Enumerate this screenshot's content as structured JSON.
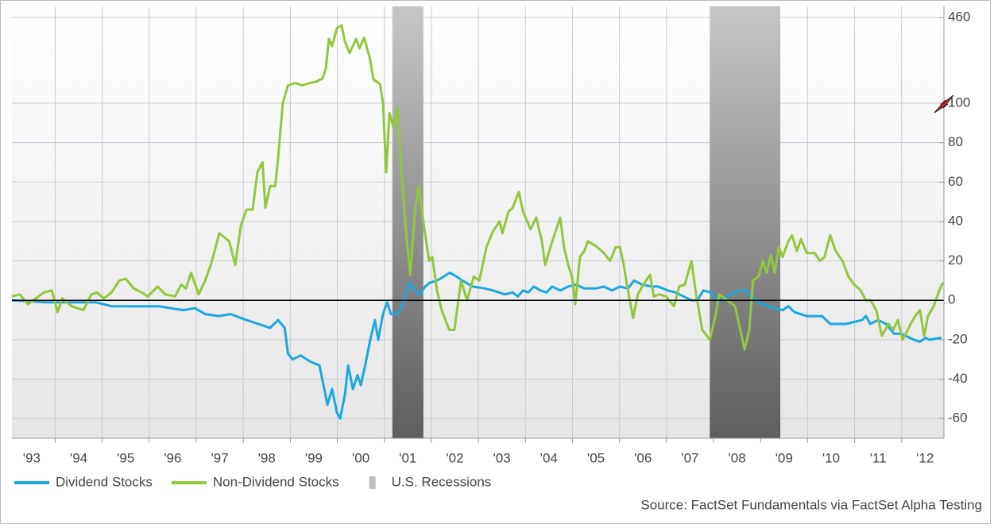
{
  "chart_data": {
    "type": "line",
    "source": "Source: FactSet Fundamentals via FactSet Alpha Testing",
    "xlim": [
      1993.08,
      2012.9
    ],
    "xticks": [
      {
        "value": 1993,
        "label": "'93"
      },
      {
        "value": 1994,
        "label": "'94"
      },
      {
        "value": 1995,
        "label": "'95"
      },
      {
        "value": 1996,
        "label": "'96"
      },
      {
        "value": 1997,
        "label": "'97"
      },
      {
        "value": 1998,
        "label": "'98"
      },
      {
        "value": 1999,
        "label": "'99"
      },
      {
        "value": 2000,
        "label": "'00"
      },
      {
        "value": 2001,
        "label": "'01"
      },
      {
        "value": 2002,
        "label": "'02"
      },
      {
        "value": 2003,
        "label": "'03"
      },
      {
        "value": 2004,
        "label": "'04"
      },
      {
        "value": 2005,
        "label": "'05"
      },
      {
        "value": 2006,
        "label": "'06"
      },
      {
        "value": 2007,
        "label": "'07"
      },
      {
        "value": 2008,
        "label": "'08"
      },
      {
        "value": 2009,
        "label": "'09"
      },
      {
        "value": 2010,
        "label": "'10"
      },
      {
        "value": 2011,
        "label": "'11"
      },
      {
        "value": 2012,
        "label": "'12"
      }
    ],
    "ylim": [
      -70,
      460
    ],
    "axis_break": 100,
    "yticks": [
      -60,
      -40,
      -20,
      0,
      20,
      40,
      60,
      80,
      100,
      460
    ],
    "grid": true,
    "legend": "bottom",
    "recessions": {
      "name": "U.S. Recessions",
      "color": "#bdbdbd",
      "periods": [
        [
          2001.17,
          2001.83
        ],
        [
          2007.92,
          2009.42
        ]
      ]
    },
    "series": [
      {
        "name": "Dividend Stocks",
        "color": "#1ba8e0",
        "x": [
          1993.08,
          1993.84,
          1994.86,
          1995.2,
          1996.21,
          1996.46,
          1996.72,
          1996.97,
          1997.19,
          1997.48,
          1997.73,
          1998.07,
          1998.32,
          1998.57,
          1998.74,
          1998.88,
          1998.95,
          1999.05,
          1999.22,
          1999.42,
          1999.62,
          1999.79,
          1999.89,
          1999.99,
          2000.06,
          2000.16,
          2000.23,
          2000.33,
          2000.43,
          2000.5,
          2000.6,
          2000.7,
          2000.8,
          2000.87,
          2000.97,
          2001.06,
          2001.14,
          2001.28,
          2001.38,
          2001.53,
          2001.65,
          2001.75,
          2001.87,
          2001.97,
          2002.12,
          2002.26,
          2002.39,
          2002.54,
          2002.66,
          2002.88,
          2003.14,
          2003.31,
          2003.56,
          2003.73,
          2003.84,
          2003.95,
          2004.06,
          2004.18,
          2004.32,
          2004.45,
          2004.57,
          2004.74,
          2004.91,
          2005.08,
          2005.25,
          2005.5,
          2005.67,
          2005.84,
          2006.01,
          2006.18,
          2006.31,
          2006.48,
          2006.69,
          2006.82,
          2007.03,
          2007.19,
          2007.53,
          2007.66,
          2007.78,
          2007.95,
          2008.12,
          2008.29,
          2008.54,
          2008.68,
          2008.8,
          2009.05,
          2009.3,
          2009.47,
          2009.59,
          2009.72,
          2009.98,
          2010.31,
          2010.48,
          2010.82,
          2010.99,
          2011.16,
          2011.24,
          2011.33,
          2011.5,
          2011.67,
          2011.84,
          2012.0,
          2012.26,
          2012.39,
          2012.51,
          2012.59,
          2012.85
        ],
        "values": [
          0,
          -1,
          -1,
          -3,
          -3,
          -4,
          -5,
          -4,
          -7,
          -8,
          -7,
          -10,
          -12,
          -14,
          -10,
          -14,
          -27,
          -30,
          -28,
          -31,
          -33,
          -53,
          -45,
          -57,
          -60,
          -48,
          -33,
          -45,
          -38,
          -43,
          -32,
          -20,
          -10,
          -20,
          -7,
          -1,
          -7,
          -7,
          -3,
          9,
          5,
          3,
          7,
          9,
          10,
          12,
          14,
          12,
          10,
          7,
          6,
          5,
          3,
          4,
          2,
          5,
          4,
          7,
          5,
          4,
          7,
          5,
          7,
          8,
          6,
          6,
          7,
          5,
          7,
          6,
          10,
          8,
          7,
          7,
          5,
          4,
          0,
          0,
          5,
          4,
          -1,
          2,
          5,
          5,
          2,
          -2,
          -4,
          -5,
          -3,
          -6,
          -8,
          -8,
          -12,
          -12,
          -11,
          -10,
          -8,
          -12,
          -10,
          -12,
          -17,
          -17,
          -20,
          -21,
          -19,
          -20,
          -19
        ]
      },
      {
        "name": "Non-Dividend Stocks",
        "color": "#92c73e",
        "x": [
          1993.08,
          1993.25,
          1993.42,
          1993.59,
          1993.76,
          1993.93,
          1994.05,
          1994.15,
          1994.35,
          1994.6,
          1994.77,
          1994.89,
          1995.03,
          1995.2,
          1995.36,
          1995.5,
          1995.67,
          1995.84,
          1995.97,
          1996.18,
          1996.34,
          1996.55,
          1996.68,
          1996.78,
          1996.89,
          1997.05,
          1997.19,
          1997.31,
          1997.39,
          1997.49,
          1997.7,
          1997.83,
          1997.95,
          1998.07,
          1998.2,
          1998.3,
          1998.41,
          1998.47,
          1998.57,
          1998.68,
          1998.74,
          1998.84,
          1998.95,
          1999.11,
          1999.25,
          1999.42,
          1999.55,
          1999.69,
          1999.76,
          1999.82,
          1999.89,
          1999.99,
          2000.09,
          2000.16,
          2000.26,
          2000.4,
          2000.47,
          2000.57,
          2000.69,
          2000.77,
          2000.91,
          2000.97,
          2001.04,
          2001.11,
          2001.19,
          2001.28,
          2001.38,
          2001.48,
          2001.55,
          2001.65,
          2001.73,
          2001.83,
          2001.95,
          2002.02,
          2002.12,
          2002.22,
          2002.38,
          2002.49,
          2002.63,
          2002.76,
          2002.9,
          2003.02,
          2003.17,
          2003.31,
          2003.45,
          2003.51,
          2003.64,
          2003.73,
          2003.86,
          2003.95,
          2004.11,
          2004.23,
          2004.35,
          2004.42,
          2004.57,
          2004.74,
          2004.82,
          2004.91,
          2004.99,
          2005.06,
          2005.16,
          2005.25,
          2005.33,
          2005.53,
          2005.67,
          2005.8,
          2005.92,
          2006.01,
          2006.09,
          2006.18,
          2006.29,
          2006.39,
          2006.51,
          2006.65,
          2006.73,
          2006.85,
          2006.99,
          2007.16,
          2007.27,
          2007.39,
          2007.53,
          2007.63,
          2007.76,
          2007.92,
          2008.04,
          2008.12,
          2008.29,
          2008.46,
          2008.57,
          2008.66,
          2008.76,
          2008.84,
          2008.96,
          2009.05,
          2009.13,
          2009.22,
          2009.3,
          2009.39,
          2009.47,
          2009.59,
          2009.67,
          2009.77,
          2009.86,
          2009.98,
          2010.15,
          2010.26,
          2010.36,
          2010.48,
          2010.6,
          2010.74,
          2010.87,
          2010.99,
          2011.13,
          2011.24,
          2011.34,
          2011.46,
          2011.58,
          2011.72,
          2011.82,
          2011.92,
          2012.02,
          2012.09,
          2012.19,
          2012.29,
          2012.39,
          2012.48,
          2012.56,
          2012.68,
          2012.8,
          2012.88
        ],
        "values": [
          2,
          3,
          -2,
          1,
          4,
          5,
          -6,
          1,
          -3,
          -5,
          3,
          4,
          1,
          4,
          10,
          11,
          6,
          4,
          2,
          7,
          3,
          2,
          8,
          6,
          14,
          3,
          10,
          18,
          25,
          34,
          30,
          18,
          38,
          46,
          46,
          65,
          70,
          47,
          58,
          58,
          72,
          100,
          175,
          185,
          175,
          185,
          190,
          205,
          250,
          370,
          340,
          415,
          427,
          360,
          310,
          370,
          330,
          375,
          290,
          200,
          180,
          100,
          65,
          95,
          88,
          98,
          60,
          30,
          13,
          45,
          58,
          40,
          20,
          22,
          5,
          -5,
          -15,
          -15,
          10,
          0,
          12,
          10,
          27,
          35,
          40,
          34,
          45,
          47,
          55,
          45,
          36,
          42,
          30,
          18,
          30,
          42,
          27,
          18,
          12,
          -2,
          22,
          25,
          30,
          27,
          24,
          20,
          27,
          27,
          18,
          5,
          -9,
          3,
          8,
          13,
          2,
          3,
          2,
          -3,
          7,
          8,
          20,
          3,
          -15,
          -20,
          -8,
          3,
          0,
          -3,
          -15,
          -25,
          -15,
          10,
          12,
          20,
          14,
          23,
          14,
          27,
          22,
          30,
          33,
          25,
          31,
          24,
          24,
          20,
          22,
          33,
          25,
          20,
          12,
          8,
          5,
          0,
          0,
          -5,
          -18,
          -12,
          -15,
          -10,
          -20,
          -17,
          -12,
          -8,
          -5,
          -18,
          -8,
          -3,
          5,
          9
        ]
      }
    ]
  }
}
